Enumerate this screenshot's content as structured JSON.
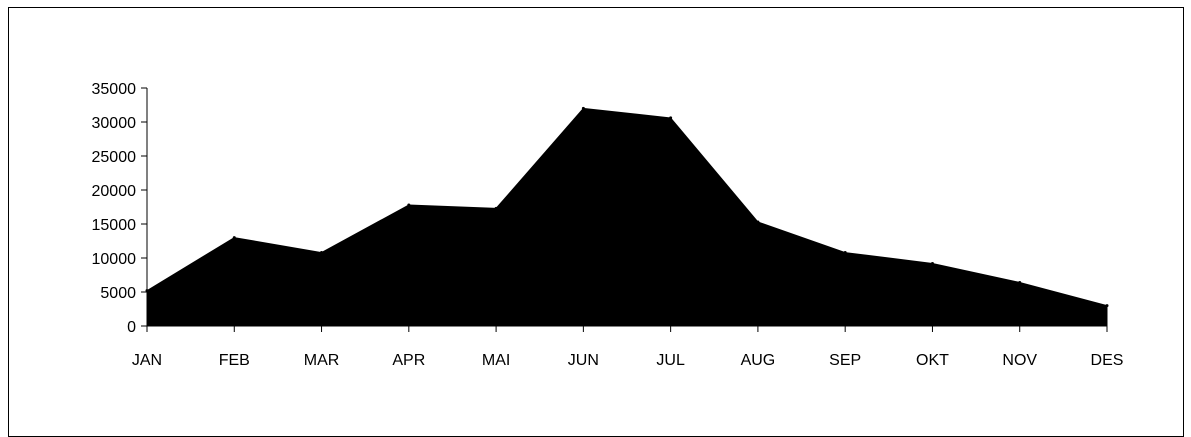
{
  "chart_data": {
    "type": "area",
    "title": "",
    "xlabel": "",
    "ylabel": "",
    "categories": [
      "JAN",
      "FEB",
      "MAR",
      "APR",
      "MAI",
      "JUN",
      "JUL",
      "AUG",
      "SEP",
      "OKT",
      "NOV",
      "DES"
    ],
    "values": [
      5200,
      13000,
      10800,
      17800,
      17300,
      32000,
      30600,
      15300,
      10800,
      9200,
      6400,
      3000
    ],
    "ylim": [
      0,
      35000
    ],
    "yticks": [
      0,
      5000,
      10000,
      15000,
      20000,
      25000,
      30000,
      35000
    ],
    "ytick_labels": [
      "0",
      "5000",
      "10000",
      "15000",
      "20000",
      "25000",
      "30000",
      "35000"
    ],
    "grid": false,
    "legend": "none",
    "fill_color": "#000000",
    "axis_color": "#000000"
  }
}
